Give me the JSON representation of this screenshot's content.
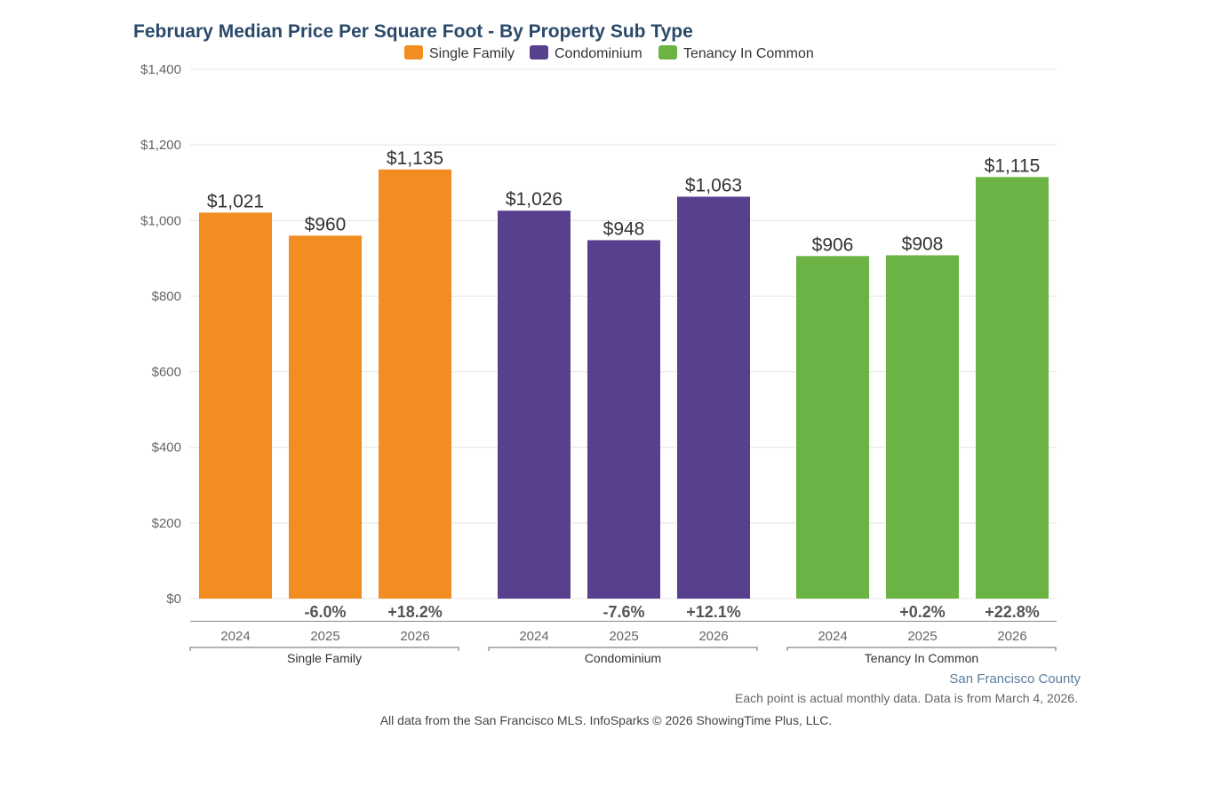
{
  "chart_data": {
    "type": "bar",
    "title": "February Median Price Per Square Foot - By Property Sub Type",
    "xlabel": "",
    "ylabel": "",
    "ylim": [
      0,
      1400
    ],
    "yticks": [
      0,
      200,
      400,
      600,
      800,
      1000,
      1200,
      1400
    ],
    "ytick_labels": [
      "$0",
      "$200",
      "$400",
      "$600",
      "$800",
      "$1,000",
      "$1,200",
      "$1,400"
    ],
    "grid": true,
    "legend_position": "top-center",
    "categories": [
      "2024",
      "2025",
      "2026"
    ],
    "series": [
      {
        "name": "Single Family",
        "color": "#f28e21",
        "values": [
          1021,
          960,
          1135
        ],
        "value_labels": [
          "$1,021",
          "$960",
          "$1,135"
        ],
        "change_labels": [
          "",
          "-6.0%",
          "+18.2%"
        ]
      },
      {
        "name": "Condominium",
        "color": "#58408f",
        "values": [
          1026,
          948,
          1063
        ],
        "value_labels": [
          "$1,026",
          "$948",
          "$1,063"
        ],
        "change_labels": [
          "",
          "-7.6%",
          "+12.1%"
        ]
      },
      {
        "name": "Tenancy In Common",
        "color": "#6ab344",
        "values": [
          906,
          908,
          1115
        ],
        "value_labels": [
          "$906",
          "$908",
          "$1,115"
        ],
        "change_labels": [
          "",
          "+0.2%",
          "+22.8%"
        ]
      }
    ]
  },
  "footer": {
    "region": "San Francisco County",
    "note": "Each point is actual monthly data. Data is from March 4, 2026.",
    "credit": "All data from the San Francisco MLS. InfoSparks © 2026 ShowingTime Plus, LLC."
  }
}
